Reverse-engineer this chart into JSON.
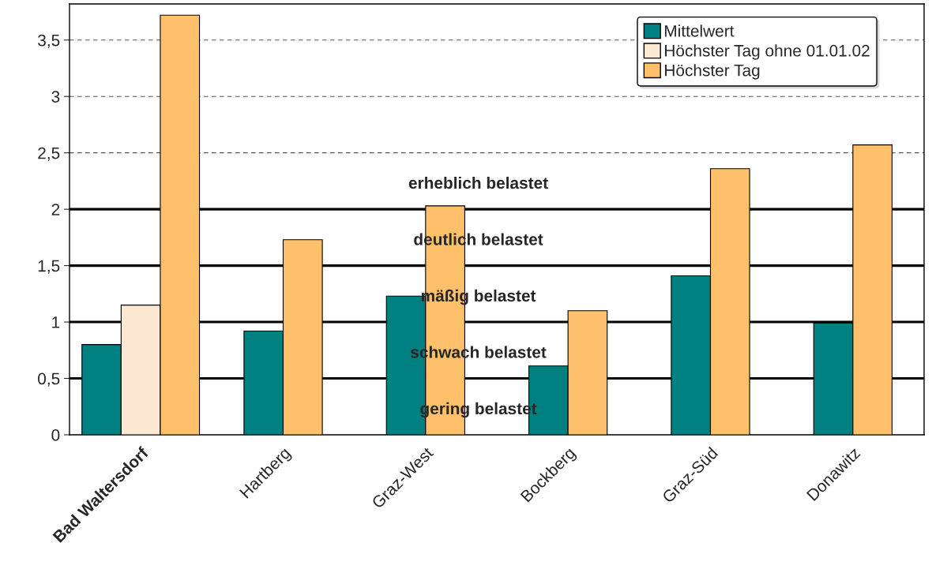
{
  "chart_data": {
    "type": "bar",
    "categories": [
      "Bad Waltersdorf",
      "Hartberg",
      "Graz-West",
      "Bockberg",
      "Graz-Süd",
      "Donawitz"
    ],
    "series": [
      {
        "name": "Mittelwert",
        "color": "#008080",
        "values": [
          0.8,
          0.92,
          1.23,
          0.61,
          1.41,
          0.99
        ]
      },
      {
        "name": "Höchster Tag ohne 01.01.02",
        "color": "#fde9d3",
        "values": [
          1.15,
          null,
          null,
          null,
          null,
          null
        ]
      },
      {
        "name": "Höchster Tag",
        "color": "#fec06a",
        "values": [
          3.72,
          1.73,
          2.03,
          1.1,
          2.36,
          2.57
        ]
      }
    ],
    "ylim": [
      0,
      3.82
    ],
    "yticks": [
      0,
      {
        "value": 0.5,
        "label": "0,5"
      },
      1,
      {
        "value": 1.5,
        "label": "1,5"
      },
      2,
      {
        "value": 2.5,
        "label": "2,5"
      },
      3,
      {
        "value": 3.5,
        "label": "3,5"
      }
    ],
    "grid": false,
    "legend": "top right",
    "ref_lines": [
      {
        "axis": "y",
        "value": 0.5
      },
      {
        "axis": "y",
        "value": 1
      },
      {
        "axis": "y",
        "value": 1.5
      },
      {
        "axis": "y",
        "value": 2
      },
      {
        "axis": "y",
        "value": 2.5,
        "line_style": "dashed",
        "color": "#555555"
      },
      {
        "axis": "y",
        "value": 3,
        "line_style": "dashed",
        "color": "#555555"
      },
      {
        "axis": "y",
        "value": 3.5,
        "line_style": "dashed",
        "color": "#555555"
      }
    ],
    "annotations": [
      "gering belastet",
      "schwach belastet",
      "mäßig belastet",
      "deutlich belastet",
      "erheblich belastet"
    ]
  }
}
